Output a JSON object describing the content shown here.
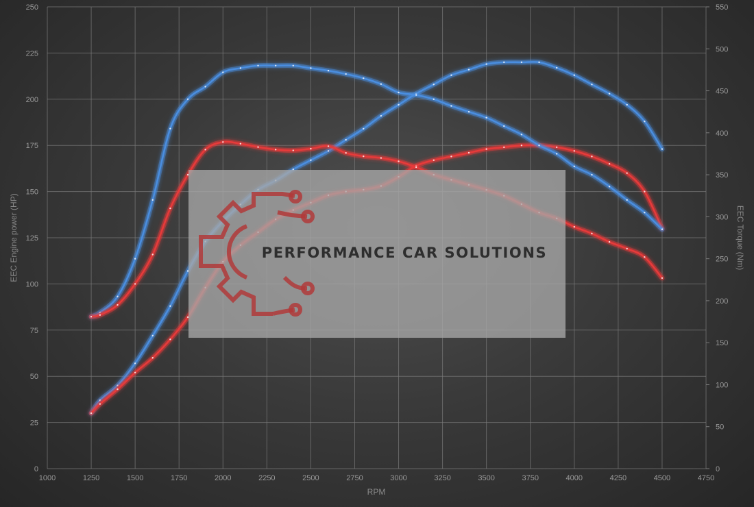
{
  "chart_data": {
    "type": "line",
    "title": "",
    "xlabel": "RPM",
    "ylabel": "EEC Engine power (HP)",
    "y2label": "EEC Torque (Nm)",
    "xlim": [
      1000,
      4750
    ],
    "ylim": [
      0,
      250
    ],
    "y2lim": [
      0,
      550
    ],
    "x_ticks": [
      "1000",
      "1250",
      "1500",
      "1750",
      "2000",
      "2250",
      "2500",
      "2750",
      "3000",
      "3250",
      "3500",
      "3750",
      "4000",
      "4250",
      "4500",
      "4750"
    ],
    "y_ticks": [
      "0",
      "25",
      "50",
      "75",
      "100",
      "125",
      "150",
      "175",
      "200",
      "225",
      "250"
    ],
    "y2_ticks": [
      "0",
      "50",
      "100",
      "150",
      "200",
      "250",
      "300",
      "350",
      "400",
      "450",
      "500",
      "550"
    ],
    "grid": true,
    "legend": "none",
    "series": [
      {
        "axis": "left",
        "color": "#4a8ee0",
        "x": [
          1250,
          1300,
          1400,
          1500,
          1600,
          1700,
          1800,
          1900,
          2000,
          2100,
          2200,
          2300,
          2400,
          2500,
          2600,
          2700,
          2800,
          2900,
          3000,
          3100,
          3200,
          3300,
          3400,
          3500,
          3600,
          3700,
          3800,
          3900,
          4000,
          4100,
          4200,
          4300,
          4400,
          4500
        ],
        "y": [
          30,
          37,
          45,
          57,
          72,
          88,
          107,
          123,
          134,
          143,
          151,
          156,
          162,
          167,
          172,
          178,
          184,
          191,
          197,
          203,
          208,
          213,
          216,
          219,
          220,
          220,
          220,
          217,
          213,
          208,
          203,
          197,
          188,
          173
        ]
      },
      {
        "axis": "left",
        "color": "#e83a3a",
        "x": [
          1250,
          1300,
          1400,
          1500,
          1600,
          1700,
          1800,
          1900,
          2000,
          2100,
          2200,
          2300,
          2400,
          2500,
          2600,
          2700,
          2800,
          2900,
          3000,
          3100,
          3200,
          3300,
          3400,
          3500,
          3600,
          3700,
          3800,
          3900,
          4000,
          4100,
          4200,
          4300,
          4400,
          4500
        ],
        "y": [
          30,
          35,
          43,
          52,
          60,
          70,
          82,
          98,
          112,
          121,
          128,
          135,
          140,
          144,
          148,
          150,
          151,
          153,
          158,
          164,
          167,
          169,
          171,
          173,
          174,
          175,
          175,
          174,
          172,
          169,
          165,
          160,
          150,
          130
        ]
      },
      {
        "axis": "right",
        "color": "#4a8ee0",
        "x": [
          1250,
          1300,
          1400,
          1500,
          1600,
          1700,
          1800,
          1900,
          2000,
          2100,
          2200,
          2300,
          2400,
          2500,
          2600,
          2700,
          2800,
          2900,
          3000,
          3100,
          3200,
          3300,
          3400,
          3500,
          3600,
          3700,
          3800,
          3900,
          4000,
          4100,
          4200,
          4300,
          4400,
          4500
        ],
        "y": [
          181,
          186,
          205,
          250,
          320,
          405,
          440,
          455,
          472,
          477,
          480,
          480,
          480,
          477,
          474,
          470,
          465,
          458,
          448,
          445,
          440,
          432,
          425,
          418,
          408,
          398,
          385,
          375,
          360,
          350,
          336,
          320,
          305,
          285
        ]
      },
      {
        "axis": "right",
        "color": "#e83a3a",
        "x": [
          1250,
          1300,
          1400,
          1500,
          1600,
          1700,
          1800,
          1900,
          2000,
          2100,
          2200,
          2300,
          2400,
          2500,
          2600,
          2700,
          2800,
          2900,
          3000,
          3100,
          3200,
          3300,
          3400,
          3500,
          3600,
          3700,
          3800,
          3900,
          4000,
          4100,
          4200,
          4300,
          4400,
          4500
        ],
        "y": [
          181,
          183,
          195,
          220,
          255,
          310,
          350,
          380,
          389,
          387,
          383,
          380,
          379,
          381,
          384,
          376,
          372,
          370,
          366,
          359,
          350,
          344,
          338,
          332,
          325,
          315,
          305,
          298,
          288,
          280,
          270,
          262,
          252,
          227
        ]
      }
    ]
  },
  "watermark": {
    "text": "PERFORMANCE CAR SOLUTIONS",
    "icon": "gear-circuit-logo-icon",
    "color": "#b03a3a"
  }
}
